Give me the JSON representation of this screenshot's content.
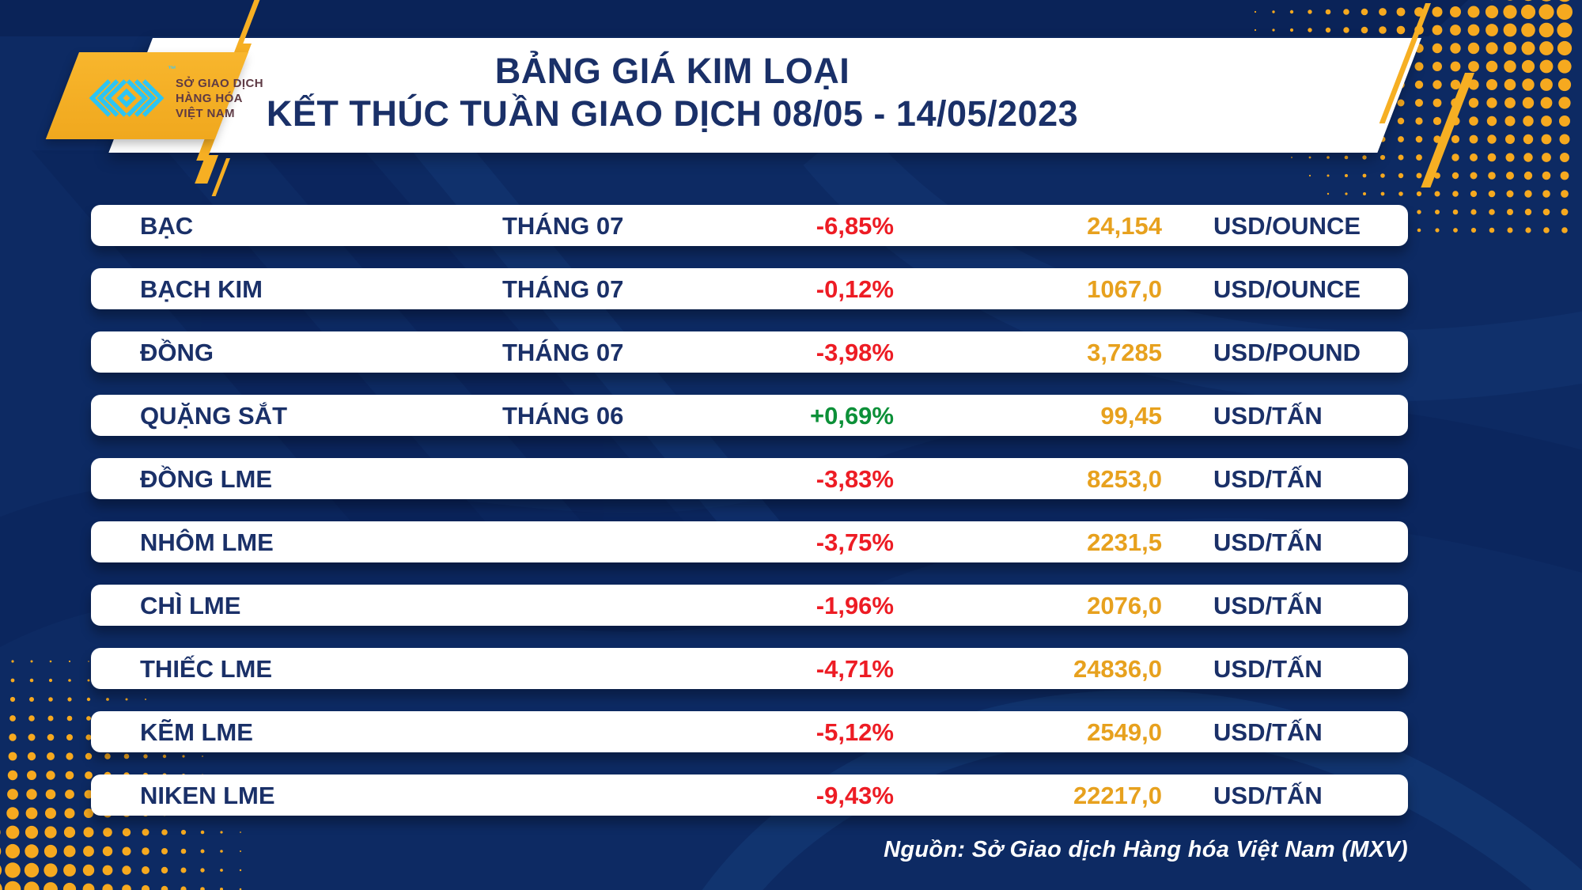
{
  "header": {
    "title_line1": "BẢNG GIÁ KIM LOẠI",
    "title_line2": "KẾT THÚC TUẦN GIAO DỊCH 08/05 - 14/05/2023",
    "logo": {
      "org_line1": "SỞ GIAO DỊCH",
      "org_line2": "HÀNG HÓA",
      "org_line3": "VIỆT NAM",
      "trademark": "™"
    }
  },
  "table": {
    "rows": [
      {
        "name": "BẠC",
        "month": "THÁNG 07",
        "change": "-6,85%",
        "direction": "down",
        "price": "24,154",
        "unit": "USD/OUNCE"
      },
      {
        "name": "BẠCH KIM",
        "month": "THÁNG 07",
        "change": "-0,12%",
        "direction": "down",
        "price": "1067,0",
        "unit": "USD/OUNCE"
      },
      {
        "name": "ĐỒNG",
        "month": "THÁNG 07",
        "change": "-3,98%",
        "direction": "down",
        "price": "3,7285",
        "unit": "USD/POUND"
      },
      {
        "name": "QUẶNG SẮT",
        "month": "THÁNG 06",
        "change": "+0,69%",
        "direction": "up",
        "price": "99,45",
        "unit": "USD/TẤN"
      },
      {
        "name": "ĐỒNG LME",
        "month": "",
        "change": "-3,83%",
        "direction": "down",
        "price": "8253,0",
        "unit": "USD/TẤN"
      },
      {
        "name": "NHÔM LME",
        "month": "",
        "change": "-3,75%",
        "direction": "down",
        "price": "2231,5",
        "unit": "USD/TẤN"
      },
      {
        "name": "CHÌ LME",
        "month": "",
        "change": "-1,96%",
        "direction": "down",
        "price": "2076,0",
        "unit": "USD/TẤN"
      },
      {
        "name": "THIẾC LME",
        "month": "",
        "change": "-4,71%",
        "direction": "down",
        "price": "24836,0",
        "unit": "USD/TẤN"
      },
      {
        "name": "KẼM LME",
        "month": "",
        "change": "-5,12%",
        "direction": "down",
        "price": "2549,0",
        "unit": "USD/TẤN"
      },
      {
        "name": "NIKEN LME",
        "month": "",
        "change": "-9,43%",
        "direction": "down",
        "price": "22217,0",
        "unit": "USD/TẤN"
      }
    ]
  },
  "footer": {
    "source": "Nguồn: Sở Giao dịch Hàng hóa Việt Nam (MXV)"
  },
  "colors": {
    "background_navy": "#0d2a63",
    "text_navy": "#1a3068",
    "down_red": "#ed1c24",
    "up_green": "#0c9038",
    "price_orange": "#e7a11e",
    "accent_yellow": "#f6af23",
    "logo_cyan": "#2cc5f4",
    "logo_maroon": "#5e3a44"
  },
  "chart_data": {
    "type": "table",
    "title": "BẢNG GIÁ KIM LOẠI",
    "subtitle": "KẾT THÚC TUẦN GIAO DỊCH 08/05 - 14/05/2023",
    "columns": [
      "commodity",
      "contract_month",
      "weekly_change_pct",
      "price",
      "unit"
    ],
    "rows": [
      [
        "BẠC",
        "THÁNG 07",
        -6.85,
        24.154,
        "USD/OUNCE"
      ],
      [
        "BẠCH KIM",
        "THÁNG 07",
        -0.12,
        1067.0,
        "USD/OUNCE"
      ],
      [
        "ĐỒNG",
        "THÁNG 07",
        -3.98,
        3.7285,
        "USD/POUND"
      ],
      [
        "QUẶNG SẮT",
        "THÁNG 06",
        0.69,
        99.45,
        "USD/TẤN"
      ],
      [
        "ĐỒNG LME",
        "",
        -3.83,
        8253.0,
        "USD/TẤN"
      ],
      [
        "NHÔM LME",
        "",
        -3.75,
        2231.5,
        "USD/TẤN"
      ],
      [
        "CHÌ LME",
        "",
        -1.96,
        2076.0,
        "USD/TẤN"
      ],
      [
        "THIẾC LME",
        "",
        -4.71,
        24836.0,
        "USD/TẤN"
      ],
      [
        "KẼM LME",
        "",
        -5.12,
        2549.0,
        "USD/TẤN"
      ],
      [
        "NIKEN LME",
        "",
        -9.43,
        22217.0,
        "USD/TẤN"
      ]
    ],
    "source": "Nguồn: Sở Giao dịch Hàng hóa Việt Nam (MXV)"
  }
}
